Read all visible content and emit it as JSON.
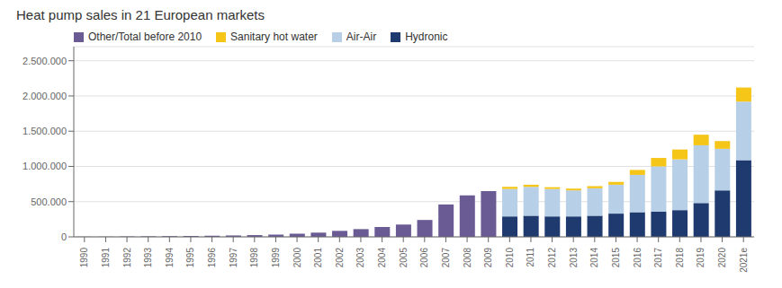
{
  "chart_data": {
    "type": "bar",
    "title": "Heat pump sales in 21 European markets",
    "stacked": true,
    "grid": true,
    "legend": "upper left",
    "categories": [
      "1990",
      "1991",
      "1992",
      "1993",
      "1994",
      "1995",
      "1996",
      "1997",
      "1998",
      "1999",
      "2000",
      "2001",
      "2002",
      "2003",
      "2004",
      "2005",
      "2006",
      "2007",
      "2008",
      "2009",
      "2010",
      "2011",
      "2012",
      "2013",
      "2014",
      "2015",
      "2016",
      "2017",
      "2018",
      "2019",
      "2020",
      "2021e"
    ],
    "ylim": [
      0,
      2700000
    ],
    "yticks": [
      0,
      {
        "value": 500000,
        "label": "500.000"
      },
      {
        "value": 1000000,
        "label": "1.000.000"
      },
      {
        "value": 1500000,
        "label": "1.500.000"
      },
      {
        "value": 2000000,
        "label": "2.000.000"
      },
      {
        "value": 2500000,
        "label": "2.500.000"
      }
    ],
    "series": [
      {
        "name": "Other/Total before 2010",
        "color": "#6b5b95",
        "values": [
          2000,
          2500,
          5000,
          7000,
          10000,
          13000,
          16000,
          20000,
          25000,
          32000,
          45000,
          60000,
          85000,
          110000,
          140000,
          175000,
          240000,
          460000,
          590000,
          650000,
          0,
          0,
          0,
          0,
          0,
          0,
          0,
          0,
          0,
          0,
          0,
          0
        ]
      },
      {
        "name": "Sanitary hot water",
        "color": "#f5c518",
        "values": [
          0,
          0,
          0,
          0,
          0,
          0,
          0,
          0,
          0,
          0,
          0,
          0,
          0,
          0,
          0,
          0,
          0,
          0,
          0,
          0,
          30000,
          30000,
          25000,
          25000,
          30000,
          40000,
          70000,
          120000,
          140000,
          150000,
          110000,
          200000
        ]
      },
      {
        "name": "Air-Air",
        "color": "#b8cfe8",
        "values": [
          0,
          0,
          0,
          0,
          0,
          0,
          0,
          0,
          0,
          0,
          0,
          0,
          0,
          0,
          0,
          0,
          0,
          0,
          0,
          0,
          390000,
          410000,
          390000,
          370000,
          390000,
          410000,
          530000,
          640000,
          720000,
          820000,
          590000,
          830000
        ]
      },
      {
        "name": "Hydronic",
        "color": "#1e3a6e",
        "values": [
          0,
          0,
          0,
          0,
          0,
          0,
          0,
          0,
          0,
          0,
          0,
          0,
          0,
          0,
          0,
          0,
          0,
          0,
          0,
          0,
          290000,
          300000,
          290000,
          290000,
          300000,
          330000,
          350000,
          360000,
          380000,
          480000,
          660000,
          1090000
        ]
      }
    ]
  }
}
